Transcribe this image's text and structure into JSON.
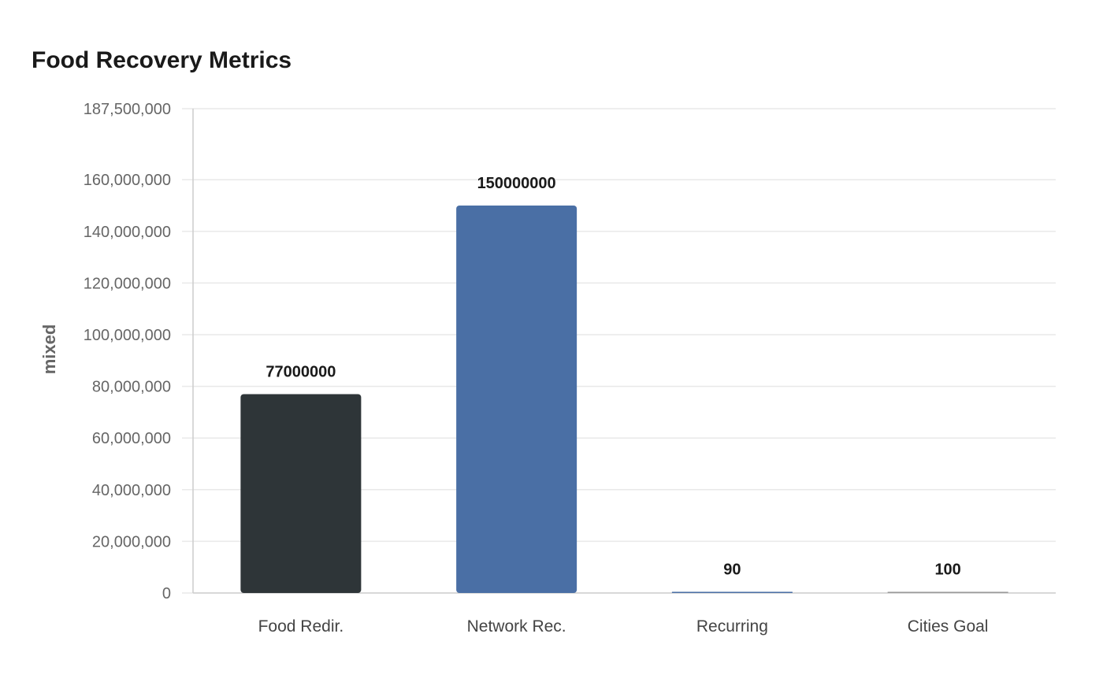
{
  "chart_data": {
    "type": "bar",
    "title": "Food Recovery Metrics",
    "xlabel": "",
    "ylabel": "mixed",
    "categories": [
      "Food Redir.",
      "Network Rec.",
      "Recurring",
      "Cities Goal"
    ],
    "values": [
      77000000,
      150000000,
      90,
      100
    ],
    "data_labels": [
      "77000000",
      "150000000",
      "90",
      "100"
    ],
    "colors": [
      "#2e3538",
      "#4a6fa5",
      "#4a6fa5",
      "#999999"
    ],
    "ylim": [
      0,
      187500000
    ],
    "yticks": [
      0,
      20000000,
      40000000,
      60000000,
      80000000,
      100000000,
      120000000,
      140000000,
      160000000,
      187500000
    ],
    "ytick_labels": [
      "0",
      "20,000,000",
      "40,000,000",
      "60,000,000",
      "80,000,000",
      "100,000,000",
      "120,000,000",
      "140,000,000",
      "160,000,000",
      "187,500,000"
    ],
    "grid": true,
    "legend": "none"
  }
}
